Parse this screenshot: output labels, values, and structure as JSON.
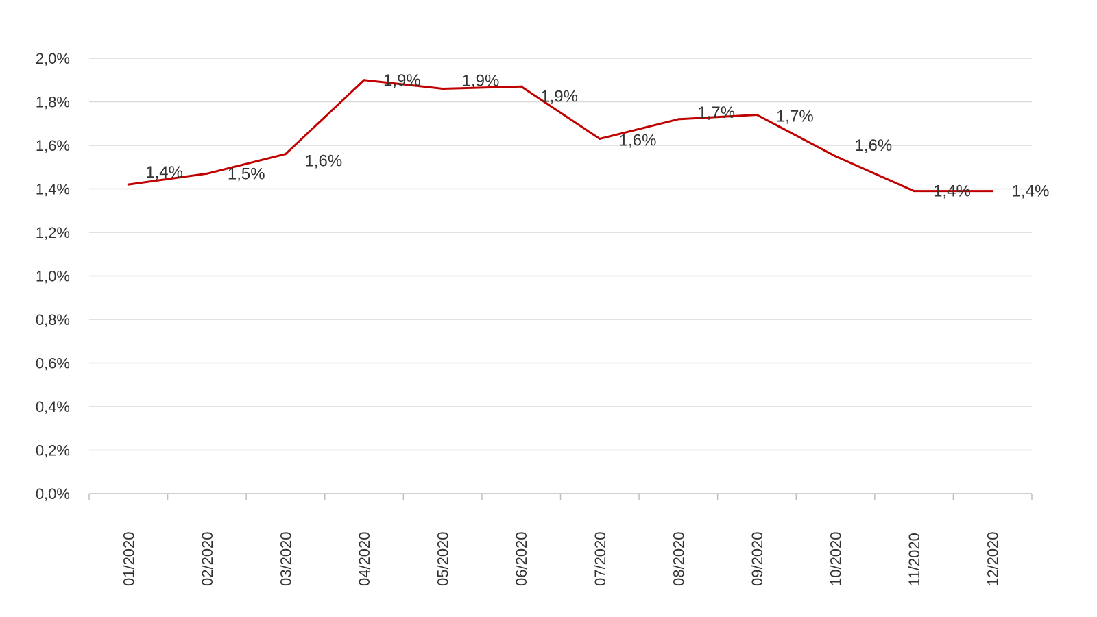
{
  "chart_data": {
    "type": "line",
    "title": "",
    "xlabel": "",
    "ylabel": "",
    "categories": [
      "01/2020",
      "02/2020",
      "03/2020",
      "04/2020",
      "05/2020",
      "06/2020",
      "07/2020",
      "08/2020",
      "09/2020",
      "10/2020",
      "11/2020",
      "12/2020"
    ],
    "series": [
      {
        "name": "",
        "color": "#c00000",
        "values": [
          1.42,
          1.47,
          1.56,
          1.9,
          1.86,
          1.87,
          1.63,
          1.72,
          1.74,
          1.55,
          1.39,
          1.39
        ],
        "labels": [
          "1,4%",
          "1,5%",
          "1,6%",
          "1,9%",
          "1,9%",
          "1,9%",
          "1,6%",
          "1,7%",
          "1,7%",
          "1,6%",
          "1,4%",
          "1,4%"
        ]
      }
    ],
    "ylim": [
      0,
      2.0
    ],
    "yticks": [
      "0,0%",
      "0,2%",
      "0,4%",
      "0,6%",
      "0,8%",
      "1,0%",
      "1,2%",
      "1,4%",
      "1,6%",
      "1,8%",
      "2,0%"
    ],
    "grid": true,
    "legend": "none"
  }
}
